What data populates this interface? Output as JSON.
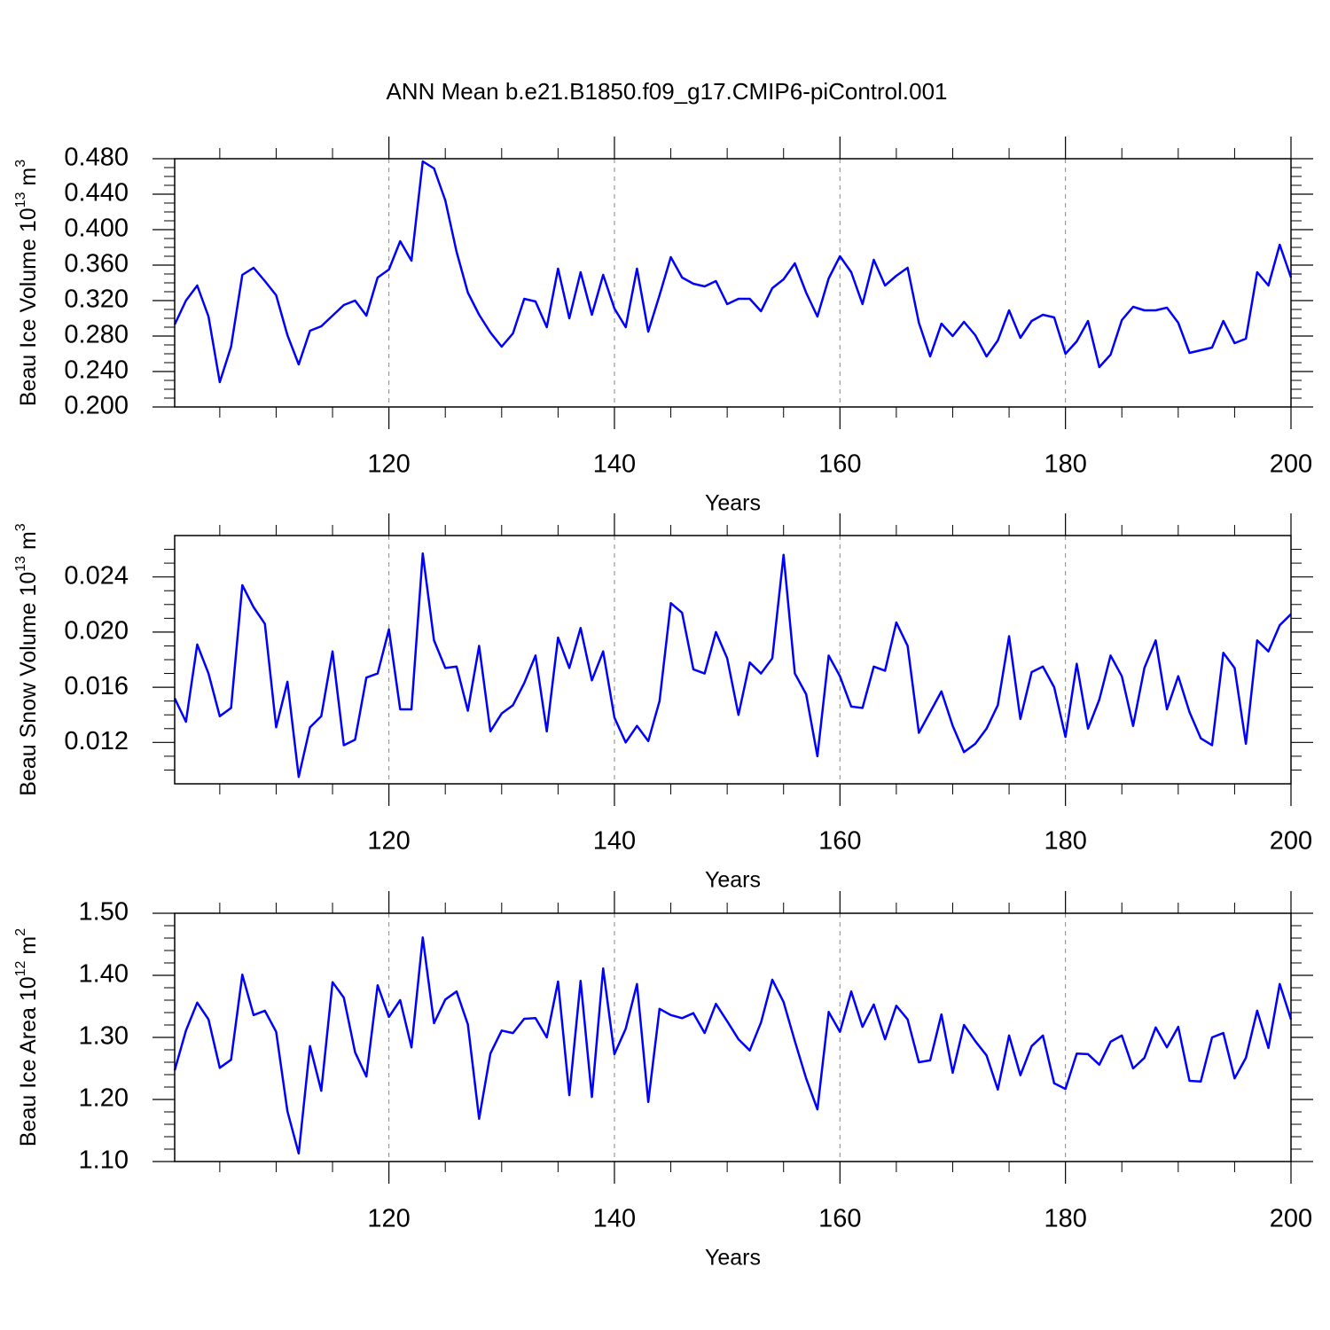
{
  "title": "ANN Mean b.e21.B1850.f09_g17.CMIP6-piControl.001",
  "chart_data": [
    {
      "type": "line",
      "color": "#0000ff",
      "xlabel": "Years",
      "ylabel": [
        {
          "text": "Beau Ice Volume 10"
        },
        {
          "sup": "13"
        },
        {
          "text": " m"
        },
        {
          "sup": "3"
        }
      ],
      "xlim": [
        101,
        200
      ],
      "xticks": [
        120,
        140,
        160,
        180,
        200
      ],
      "xminorticks": [
        105,
        110,
        115,
        125,
        130,
        135,
        145,
        150,
        155,
        165,
        170,
        175,
        185,
        190,
        195
      ],
      "ylim": [
        0.2,
        0.48
      ],
      "yticks": [
        {
          "value": 0.2,
          "label": "0.200"
        },
        {
          "value": 0.24,
          "label": "0.240"
        },
        {
          "value": 0.28,
          "label": "0.280"
        },
        {
          "value": 0.32,
          "label": "0.320"
        },
        {
          "value": 0.36,
          "label": "0.360"
        },
        {
          "value": 0.4,
          "label": "0.400"
        },
        {
          "value": 0.44,
          "label": "0.440"
        },
        {
          "value": 0.48,
          "label": "0.480"
        }
      ],
      "yminorticks": [
        0.21,
        0.22,
        0.23,
        0.25,
        0.26,
        0.27,
        0.29,
        0.3,
        0.31,
        0.33,
        0.34,
        0.35,
        0.37,
        0.38,
        0.39,
        0.41,
        0.42,
        0.43,
        0.45,
        0.46,
        0.47
      ],
      "xgrid": true,
      "x": [
        101,
        102,
        103,
        104,
        105,
        106,
        107,
        108,
        109,
        110,
        111,
        112,
        113,
        114,
        115,
        116,
        117,
        118,
        119,
        120,
        121,
        122,
        123,
        124,
        125,
        126,
        127,
        128,
        129,
        130,
        131,
        132,
        133,
        134,
        135,
        136,
        137,
        138,
        139,
        140,
        141,
        142,
        143,
        144,
        145,
        146,
        147,
        148,
        149,
        150,
        151,
        152,
        153,
        154,
        155,
        156,
        157,
        158,
        159,
        160,
        161,
        162,
        163,
        164,
        165,
        166,
        167,
        168,
        169,
        170,
        171,
        172,
        173,
        174,
        175,
        176,
        177,
        178,
        179,
        180,
        181,
        182,
        183,
        184,
        185,
        186,
        187,
        188,
        189,
        190,
        191,
        192,
        193,
        194,
        195,
        196,
        197,
        198,
        199,
        200
      ],
      "values": [
        0.293,
        0.32,
        0.337,
        0.302,
        0.228,
        0.268,
        0.349,
        0.357,
        0.342,
        0.326,
        0.281,
        0.248,
        0.286,
        0.291,
        0.303,
        0.315,
        0.32,
        0.303,
        0.346,
        0.355,
        0.387,
        0.365,
        0.477,
        0.469,
        0.433,
        0.375,
        0.329,
        0.304,
        0.284,
        0.268,
        0.283,
        0.322,
        0.319,
        0.29,
        0.356,
        0.3,
        0.352,
        0.304,
        0.349,
        0.311,
        0.29,
        0.356,
        0.285,
        0.326,
        0.369,
        0.346,
        0.339,
        0.336,
        0.342,
        0.316,
        0.322,
        0.322,
        0.308,
        0.334,
        0.344,
        0.362,
        0.329,
        0.302,
        0.345,
        0.37,
        0.352,
        0.316,
        0.366,
        0.337,
        0.348,
        0.357,
        0.295,
        0.257,
        0.294,
        0.28,
        0.296,
        0.281,
        0.257,
        0.275,
        0.309,
        0.278,
        0.297,
        0.304,
        0.301,
        0.26,
        0.274,
        0.297,
        0.245,
        0.259,
        0.298,
        0.313,
        0.309,
        0.309,
        0.312,
        0.295,
        0.261,
        0.264,
        0.267,
        0.297,
        0.272,
        0.277,
        0.352,
        0.337,
        0.383,
        0.346
      ]
    },
    {
      "type": "line",
      "color": "#0000ff",
      "xlabel": "Years",
      "ylabel": [
        {
          "text": "Beau Snow Volume 10"
        },
        {
          "sup": "13"
        },
        {
          "text": " m"
        },
        {
          "sup": "3"
        }
      ],
      "xlim": [
        101,
        200
      ],
      "xticks": [
        120,
        140,
        160,
        180,
        200
      ],
      "xminorticks": [
        105,
        110,
        115,
        125,
        130,
        135,
        145,
        150,
        155,
        165,
        170,
        175,
        185,
        190,
        195
      ],
      "ylim": [
        0.009,
        0.027
      ],
      "yticks": [
        0.012,
        0.016,
        {
          "value": 0.02,
          "label": "0.020"
        },
        0.024
      ],
      "yminorticks": [
        0.01,
        0.011,
        0.013,
        0.014,
        0.015,
        0.017,
        0.018,
        0.019,
        0.021,
        0.022,
        0.023,
        0.025,
        0.026
      ],
      "xgrid": true,
      "x": [
        101,
        102,
        103,
        104,
        105,
        106,
        107,
        108,
        109,
        110,
        111,
        112,
        113,
        114,
        115,
        116,
        117,
        118,
        119,
        120,
        121,
        122,
        123,
        124,
        125,
        126,
        127,
        128,
        129,
        130,
        131,
        132,
        133,
        134,
        135,
        136,
        137,
        138,
        139,
        140,
        141,
        142,
        143,
        144,
        145,
        146,
        147,
        148,
        149,
        150,
        151,
        152,
        153,
        154,
        155,
        156,
        157,
        158,
        159,
        160,
        161,
        162,
        163,
        164,
        165,
        166,
        167,
        168,
        169,
        170,
        171,
        172,
        173,
        174,
        175,
        176,
        177,
        178,
        179,
        180,
        181,
        182,
        183,
        184,
        185,
        186,
        187,
        188,
        189,
        190,
        191,
        192,
        193,
        194,
        195,
        196,
        197,
        198,
        199,
        200
      ],
      "values": [
        0.0152,
        0.0135,
        0.0191,
        0.017,
        0.0139,
        0.0145,
        0.0234,
        0.0218,
        0.0206,
        0.0131,
        0.0164,
        0.0095,
        0.0131,
        0.0139,
        0.0186,
        0.0118,
        0.0122,
        0.0167,
        0.017,
        0.0202,
        0.0144,
        0.0144,
        0.0257,
        0.0194,
        0.0174,
        0.0175,
        0.0143,
        0.019,
        0.0128,
        0.0141,
        0.0147,
        0.0163,
        0.0183,
        0.0128,
        0.0196,
        0.0174,
        0.0203,
        0.0165,
        0.0186,
        0.0138,
        0.012,
        0.0132,
        0.0121,
        0.015,
        0.0221,
        0.0214,
        0.0173,
        0.017,
        0.02,
        0.0181,
        0.014,
        0.0178,
        0.017,
        0.0181,
        0.0256,
        0.017,
        0.0155,
        0.011,
        0.0183,
        0.0168,
        0.0146,
        0.0145,
        0.0175,
        0.0172,
        0.0207,
        0.019,
        0.0127,
        0.0142,
        0.0157,
        0.0132,
        0.0113,
        0.0119,
        0.013,
        0.0147,
        0.0197,
        0.0137,
        0.0171,
        0.0175,
        0.016,
        0.0124,
        0.0177,
        0.013,
        0.0151,
        0.0183,
        0.0168,
        0.0132,
        0.0174,
        0.0194,
        0.0144,
        0.0168,
        0.0142,
        0.0123,
        0.0118,
        0.0185,
        0.0174,
        0.0119,
        0.0194,
        0.0186,
        0.0205,
        0.0213
      ]
    },
    {
      "type": "line",
      "color": "#0000ff",
      "xlabel": "Years",
      "ylabel": [
        {
          "text": "Beau Ice Area 10"
        },
        {
          "sup": "12"
        },
        {
          "text": " m"
        },
        {
          "sup": "2"
        }
      ],
      "xlim": [
        101,
        200
      ],
      "xticks": [
        120,
        140,
        160,
        180,
        200
      ],
      "xminorticks": [
        105,
        110,
        115,
        125,
        130,
        135,
        145,
        150,
        155,
        165,
        170,
        175,
        185,
        190,
        195
      ],
      "ylim": [
        1.1,
        1.5
      ],
      "yticks": [
        {
          "value": 1.1,
          "label": "1.10"
        },
        {
          "value": 1.2,
          "label": "1.20"
        },
        {
          "value": 1.3,
          "label": "1.30"
        },
        {
          "value": 1.4,
          "label": "1.40"
        },
        {
          "value": 1.5,
          "label": "1.50"
        }
      ],
      "yminorticks": [
        1.12,
        1.14,
        1.16,
        1.18,
        1.22,
        1.24,
        1.26,
        1.28,
        1.32,
        1.34,
        1.36,
        1.38,
        1.42,
        1.44,
        1.46,
        1.48
      ],
      "xgrid": true,
      "x": [
        101,
        102,
        103,
        104,
        105,
        106,
        107,
        108,
        109,
        110,
        111,
        112,
        113,
        114,
        115,
        116,
        117,
        118,
        119,
        120,
        121,
        122,
        123,
        124,
        125,
        126,
        127,
        128,
        129,
        130,
        131,
        132,
        133,
        134,
        135,
        136,
        137,
        138,
        139,
        140,
        141,
        142,
        143,
        144,
        145,
        146,
        147,
        148,
        149,
        150,
        151,
        152,
        153,
        154,
        155,
        156,
        157,
        158,
        159,
        160,
        161,
        162,
        163,
        164,
        165,
        166,
        167,
        168,
        169,
        170,
        171,
        172,
        173,
        174,
        175,
        176,
        177,
        178,
        179,
        180,
        181,
        182,
        183,
        184,
        185,
        186,
        187,
        188,
        189,
        190,
        191,
        192,
        193,
        194,
        195,
        196,
        197,
        198,
        199,
        200
      ],
      "values": [
        1.247,
        1.311,
        1.356,
        1.329,
        1.251,
        1.264,
        1.401,
        1.336,
        1.343,
        1.309,
        1.181,
        1.113,
        1.286,
        1.214,
        1.389,
        1.364,
        1.276,
        1.237,
        1.384,
        1.333,
        1.36,
        1.284,
        1.461,
        1.323,
        1.361,
        1.374,
        1.321,
        1.169,
        1.274,
        1.311,
        1.307,
        1.33,
        1.331,
        1.3,
        1.39,
        1.207,
        1.391,
        1.204,
        1.411,
        1.273,
        1.314,
        1.386,
        1.196,
        1.346,
        1.336,
        1.331,
        1.339,
        1.307,
        1.354,
        1.326,
        1.297,
        1.279,
        1.324,
        1.393,
        1.357,
        1.294,
        1.234,
        1.184,
        1.341,
        1.309,
        1.374,
        1.317,
        1.353,
        1.297,
        1.351,
        1.329,
        1.26,
        1.263,
        1.337,
        1.243,
        1.32,
        1.294,
        1.271,
        1.216,
        1.303,
        1.239,
        1.286,
        1.303,
        1.226,
        1.217,
        1.274,
        1.273,
        1.256,
        1.293,
        1.303,
        1.25,
        1.267,
        1.316,
        1.284,
        1.317,
        1.23,
        1.229,
        1.3,
        1.307,
        1.234,
        1.267,
        1.343,
        1.283,
        1.386,
        1.329
      ]
    }
  ]
}
